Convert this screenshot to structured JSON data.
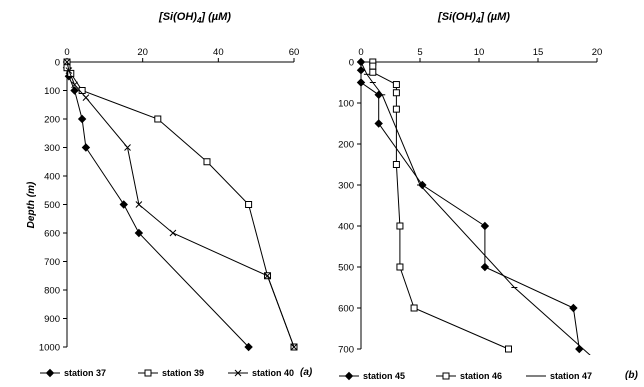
{
  "chart_data": [
    {
      "type": "line",
      "panel_label": "(a)",
      "title": "[Si(OH)4] (µM)",
      "title_main": "[Si(OH)",
      "title_sub": "4",
      "title_end": "] (µM)",
      "ylabel": "Depth (m)",
      "xlim": [
        0,
        60
      ],
      "ylim": [
        1000,
        0
      ],
      "x_ticks": [
        0,
        20,
        40,
        60
      ],
      "y_ticks": [
        0,
        100,
        200,
        300,
        400,
        500,
        600,
        700,
        800,
        900,
        1000
      ],
      "x_axis_position": "top",
      "legend_position": "bottom",
      "series": [
        {
          "name": "station 37",
          "marker": "diamond",
          "x": [
            0,
            0,
            0.5,
            2,
            4,
            5,
            15,
            19,
            48
          ],
          "y": [
            0,
            20,
            50,
            100,
            200,
            300,
            500,
            600,
            1000
          ]
        },
        {
          "name": "station 39",
          "marker": "square",
          "x": [
            0,
            0,
            1,
            4,
            24,
            37,
            48,
            53,
            60
          ],
          "y": [
            0,
            20,
            40,
            100,
            200,
            350,
            500,
            750,
            1000
          ]
        },
        {
          "name": "station 40",
          "marker": "x",
          "x": [
            0,
            0.5,
            2,
            5,
            16,
            19,
            28,
            53,
            60
          ],
          "y": [
            0,
            30,
            80,
            125,
            300,
            500,
            600,
            750,
            1000
          ]
        }
      ]
    },
    {
      "type": "line",
      "panel_label": "(b)",
      "title": "[Si(OH)4] (µM)",
      "title_main": "[Si(OH)",
      "title_sub": "4",
      "title_end": "] (µM)",
      "ylabel": "",
      "xlim": [
        0,
        20
      ],
      "ylim": [
        700,
        0
      ],
      "x_ticks": [
        0,
        5,
        10,
        15,
        20
      ],
      "y_ticks": [
        0,
        100,
        200,
        300,
        400,
        500,
        600,
        700
      ],
      "x_axis_position": "top",
      "legend_position": "bottom",
      "series": [
        {
          "name": "station 45",
          "marker": "diamond",
          "x": [
            0,
            0,
            0,
            1.5,
            1.5,
            5.2,
            10.5,
            10.5,
            18,
            18.5
          ],
          "y": [
            0,
            20,
            50,
            80,
            150,
            300,
            400,
            500,
            600,
            700
          ]
        },
        {
          "name": "station 46",
          "marker": "square",
          "x": [
            1,
            1,
            1,
            3,
            3,
            3,
            3,
            3.3,
            3.3,
            4.5,
            12.5
          ],
          "y": [
            0,
            10,
            25,
            55,
            75,
            115,
            250,
            400,
            500,
            600,
            700
          ]
        },
        {
          "name": "station 47",
          "marker": "dash",
          "x": [
            0,
            0.5,
            1,
            1.8,
            5,
            13,
            20
          ],
          "y": [
            0,
            30,
            50,
            80,
            300,
            550,
            730
          ]
        }
      ]
    }
  ]
}
